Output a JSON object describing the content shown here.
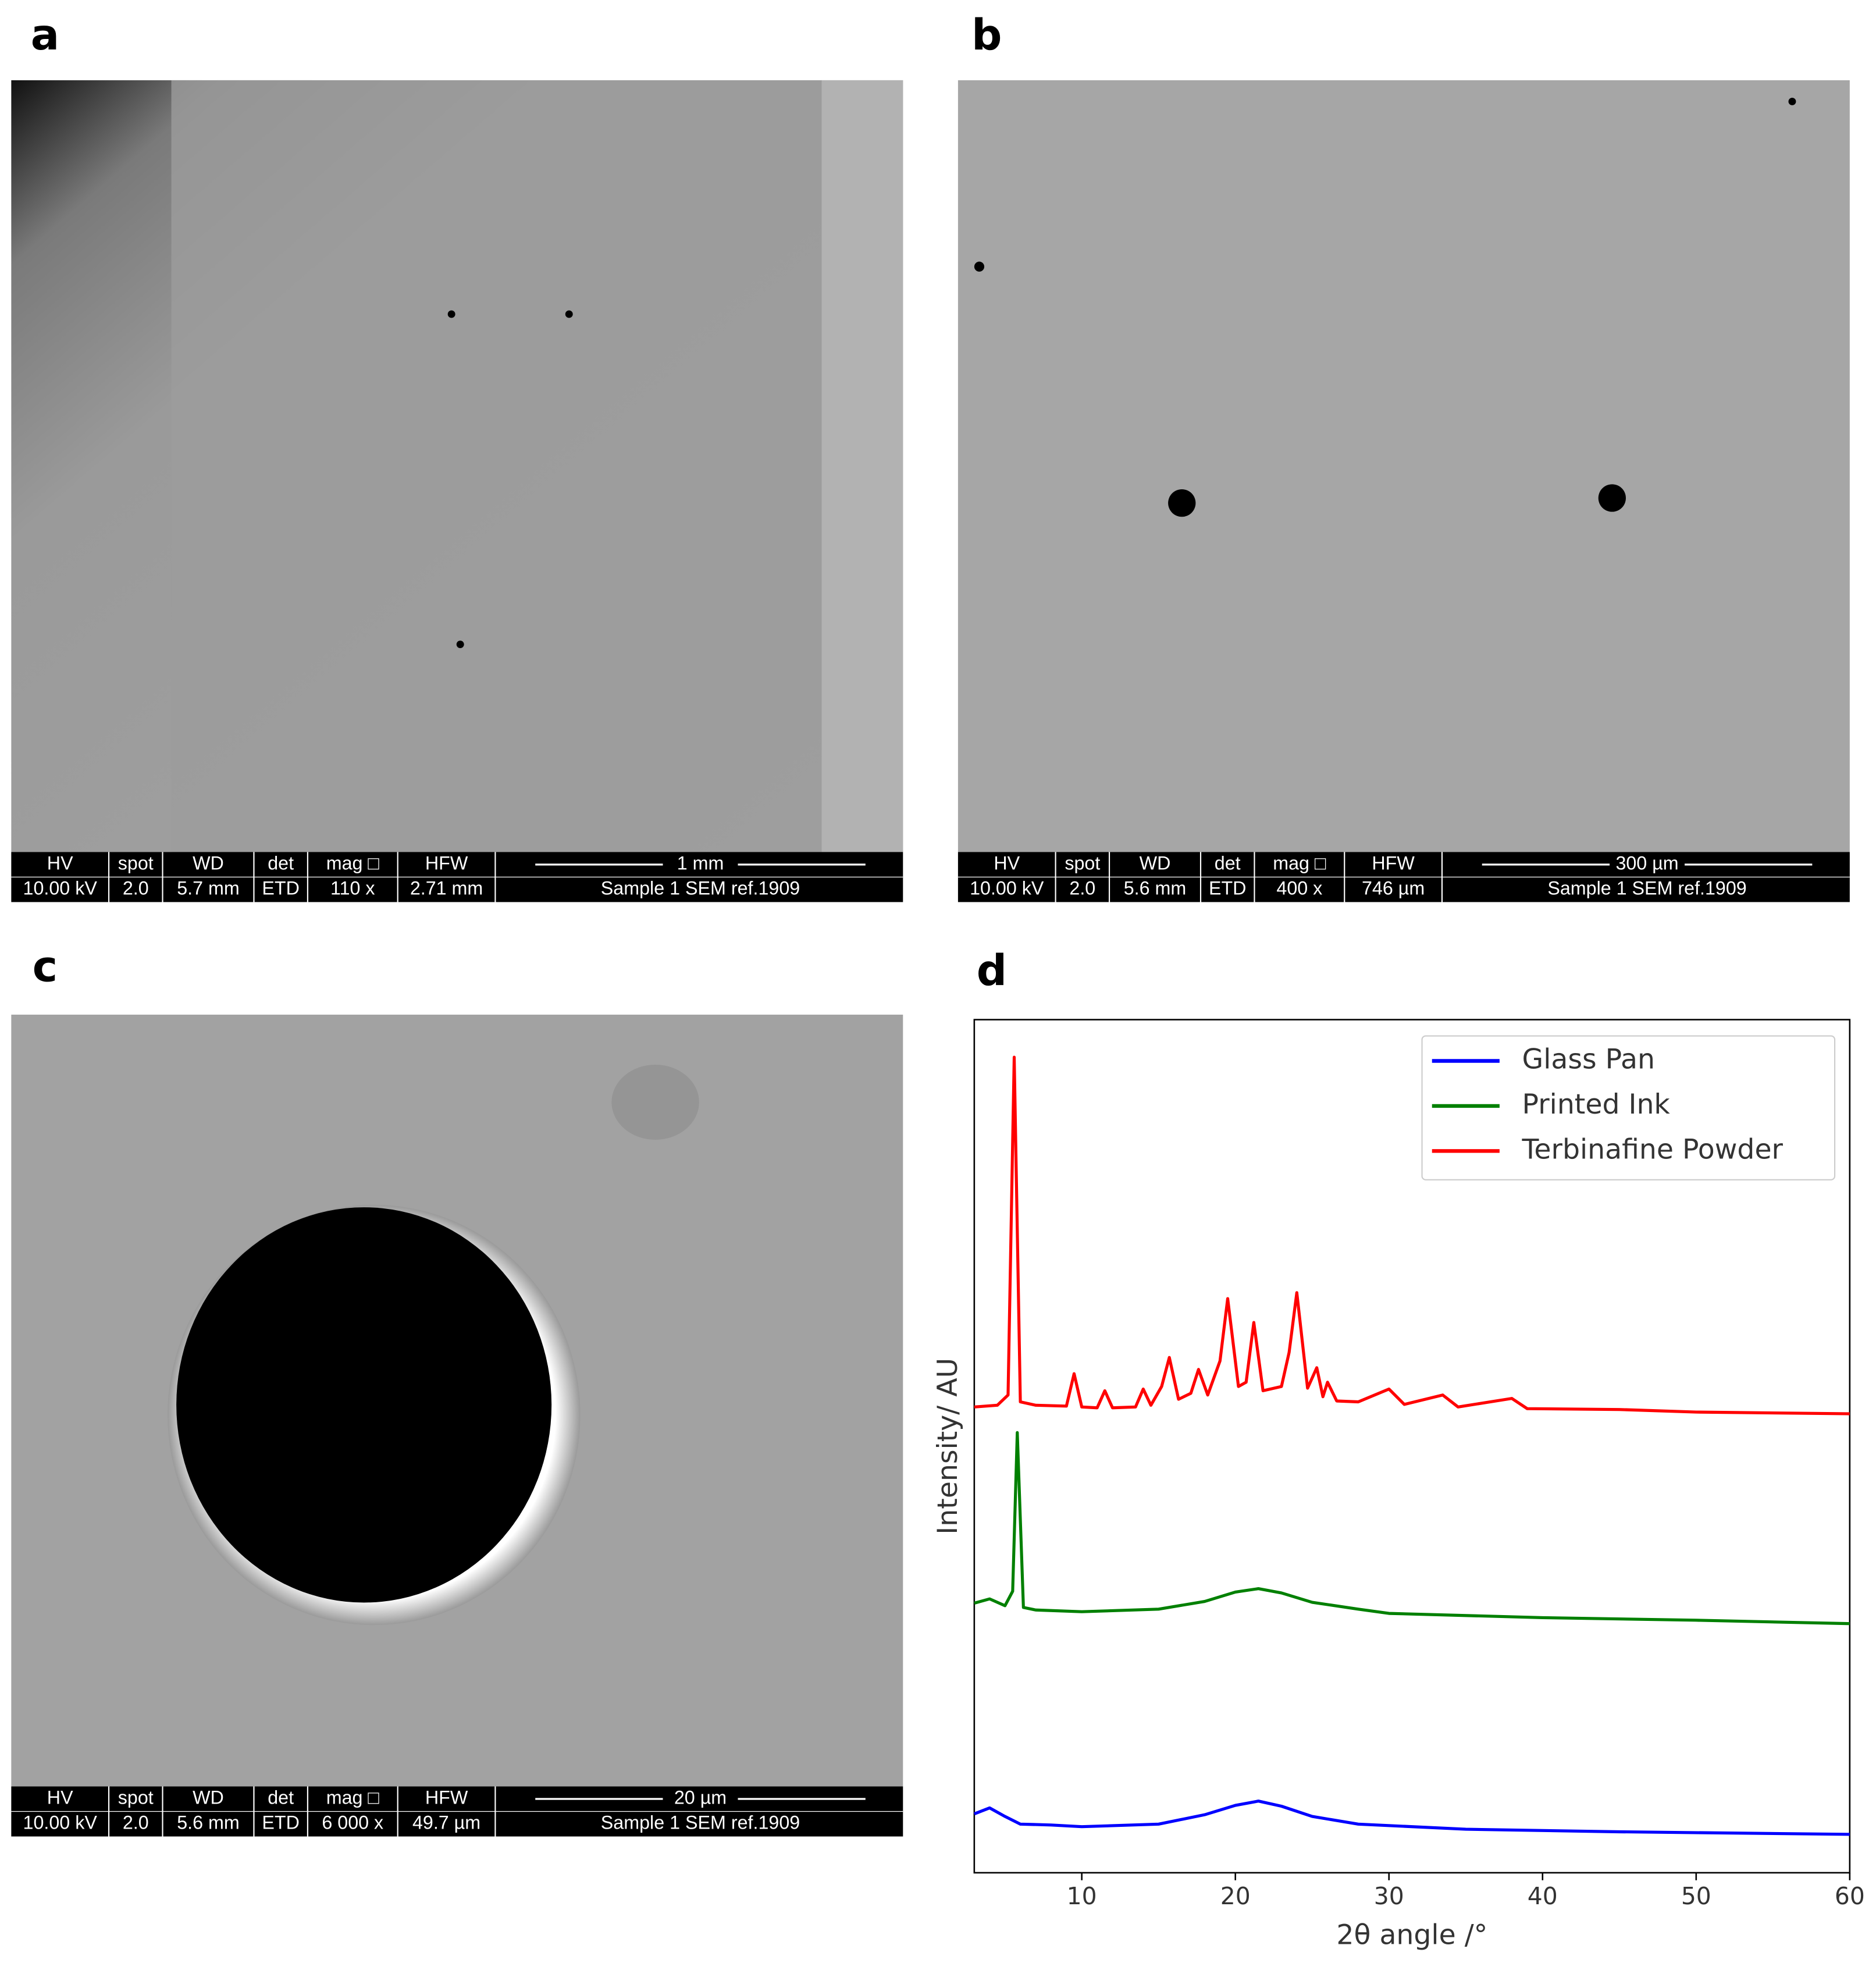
{
  "panels": [
    {
      "label": "a",
      "headers": [
        "HV",
        "spot",
        "WD",
        "det",
        "mag □",
        "HFW"
      ],
      "values": [
        "10.00 kV",
        "2.0",
        "5.7 mm",
        "ETD",
        "110 x",
        "2.71 mm"
      ],
      "scale": "1 mm",
      "sample": "Sample 1 SEM ref.1909"
    },
    {
      "label": "b",
      "headers": [
        "HV",
        "spot",
        "WD",
        "det",
        "mag □",
        "HFW"
      ],
      "values": [
        "10.00 kV",
        "2.0",
        "5.6 mm",
        "ETD",
        "400 x",
        "746 µm"
      ],
      "scale": "300 µm",
      "sample": "Sample 1 SEM ref.1909"
    },
    {
      "label": "c",
      "headers": [
        "HV",
        "spot",
        "WD",
        "det",
        "mag □",
        "HFW"
      ],
      "values": [
        "10.00 kV",
        "2.0",
        "5.6 mm",
        "ETD",
        "6 000 x",
        "49.7 µm"
      ],
      "scale": "20 µm",
      "sample": "Sample 1 SEM ref.1909"
    }
  ],
  "chart_data": {
    "type": "line",
    "label": "d",
    "x_label": "2θ angle /°",
    "y_label": "Intensity/ AU",
    "xlim": [
      3,
      60
    ],
    "xticks": [
      10,
      20,
      30,
      40,
      50,
      60
    ],
    "ylim": [
      0,
      100
    ],
    "legend": "upper right",
    "series": [
      {
        "name": "Glass Pan",
        "color": "#0000ff",
        "x": [
          3,
          4,
          5,
          6,
          8,
          10,
          15,
          18,
          20,
          21.5,
          23,
          25,
          28,
          35,
          45,
          60
        ],
        "values": [
          6.9,
          7.6,
          6.6,
          5.7,
          5.6,
          5.4,
          5.7,
          6.8,
          7.9,
          8.4,
          7.8,
          6.6,
          5.7,
          5.1,
          4.8,
          4.5
        ]
      },
      {
        "name": "Printed Ink",
        "color": "#008000",
        "x": [
          3,
          4,
          5,
          5.5,
          5.8,
          6.2,
          7,
          10,
          15,
          18,
          20,
          21.5,
          23,
          25,
          28,
          30,
          40,
          50,
          60
        ],
        "values": [
          31.6,
          32.1,
          31.3,
          33,
          51.6,
          31.1,
          30.8,
          30.6,
          30.9,
          31.8,
          32.9,
          33.3,
          32.8,
          31.7,
          30.9,
          30.4,
          29.9,
          29.6,
          29.2
        ]
      },
      {
        "name": "Terbinafine Powder",
        "color": "#ff0000",
        "x": [
          3,
          4.5,
          5.2,
          5.6,
          6.0,
          7,
          9,
          9.5,
          10,
          11,
          11.5,
          12,
          13.5,
          14,
          14.5,
          15.2,
          15.7,
          16.3,
          17.1,
          17.6,
          18.2,
          19.0,
          19.5,
          20.2,
          20.7,
          21.2,
          21.8,
          23.0,
          23.5,
          24.0,
          24.7,
          25.3,
          25.7,
          26.0,
          26.6,
          28,
          30,
          31,
          33.5,
          34.5,
          38,
          39,
          45,
          50,
          60
        ],
        "values": [
          54.6,
          54.8,
          56,
          95.6,
          55.2,
          54.8,
          54.7,
          58.5,
          54.6,
          54.5,
          56.5,
          54.5,
          54.6,
          56.7,
          54.8,
          57,
          60.4,
          55.5,
          56.2,
          59,
          56,
          60,
          67.3,
          57,
          57.5,
          64.5,
          56.5,
          57,
          61,
          68,
          56.8,
          59.2,
          55.8,
          57.5,
          55.3,
          55.2,
          56.7,
          54.9,
          56,
          54.6,
          55.6,
          54.4,
          54.3,
          54,
          53.8
        ]
      }
    ]
  }
}
